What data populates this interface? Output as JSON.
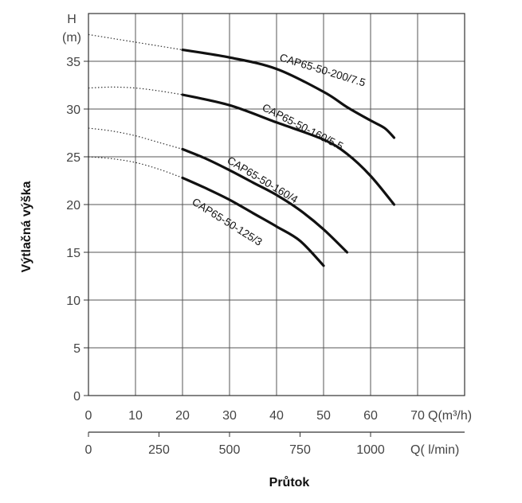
{
  "chart_data": {
    "type": "line",
    "ylabel": "Výtlačná výška",
    "xlabel": "Průtok",
    "y_unit_top": "H",
    "y_unit_bottom": "(m)",
    "x_unit_primary": "Q(m³/h)",
    "x_unit_secondary": "Q( l/min)",
    "xlim": [
      0,
      80
    ],
    "ylim": [
      0,
      40
    ],
    "x_ticks": [
      "0",
      "10",
      "20",
      "30",
      "40",
      "50",
      "60",
      "70"
    ],
    "x_tick_values": [
      0,
      10,
      20,
      30,
      40,
      50,
      60,
      70
    ],
    "y_ticks": [
      "0",
      "5",
      "10",
      "15",
      "20",
      "25",
      "30",
      "35"
    ],
    "y_tick_values": [
      0,
      5,
      10,
      15,
      20,
      25,
      30,
      35
    ],
    "x2_ticks": [
      "0",
      "250",
      "500",
      "750",
      "1000"
    ],
    "x2_tick_values": [
      0,
      250,
      500,
      750,
      1000
    ],
    "grid": true,
    "series": [
      {
        "name": "CAP65-50-200/7.5",
        "dotted": {
          "x": [
            0,
            5,
            10,
            15,
            20
          ],
          "y": [
            37.8,
            37.4,
            37.0,
            36.6,
            36.2
          ]
        },
        "solid": {
          "x": [
            20,
            30,
            40,
            50,
            55,
            60,
            63,
            65
          ],
          "y": [
            36.2,
            35.4,
            34.2,
            31.8,
            30.2,
            28.8,
            28.0,
            27.0
          ]
        }
      },
      {
        "name": "CAP65-50-160/5.5",
        "dotted": {
          "x": [
            0,
            5,
            10,
            15,
            20
          ],
          "y": [
            32.2,
            32.3,
            32.2,
            31.9,
            31.5
          ]
        },
        "solid": {
          "x": [
            20,
            30,
            40,
            50,
            55,
            60,
            65
          ],
          "y": [
            31.5,
            30.4,
            28.6,
            26.8,
            25.3,
            23.0,
            20.0
          ]
        }
      },
      {
        "name": "CAP65-50-160/4",
        "dotted": {
          "x": [
            0,
            5,
            10,
            15,
            20
          ],
          "y": [
            28.0,
            27.7,
            27.2,
            26.5,
            25.8
          ]
        },
        "solid": {
          "x": [
            20,
            25,
            30,
            35,
            40,
            45,
            50,
            55
          ],
          "y": [
            25.8,
            24.8,
            23.6,
            22.3,
            21.0,
            19.4,
            17.4,
            15.0
          ]
        }
      },
      {
        "name": "CAP65-50-125/3",
        "dotted": {
          "x": [
            0,
            5,
            10,
            15,
            20
          ],
          "y": [
            25.0,
            24.8,
            24.4,
            23.7,
            22.8
          ]
        },
        "solid": {
          "x": [
            20,
            25,
            30,
            35,
            40,
            45,
            50
          ],
          "y": [
            22.8,
            21.7,
            20.5,
            19.1,
            17.7,
            16.2,
            13.6
          ]
        }
      }
    ]
  }
}
